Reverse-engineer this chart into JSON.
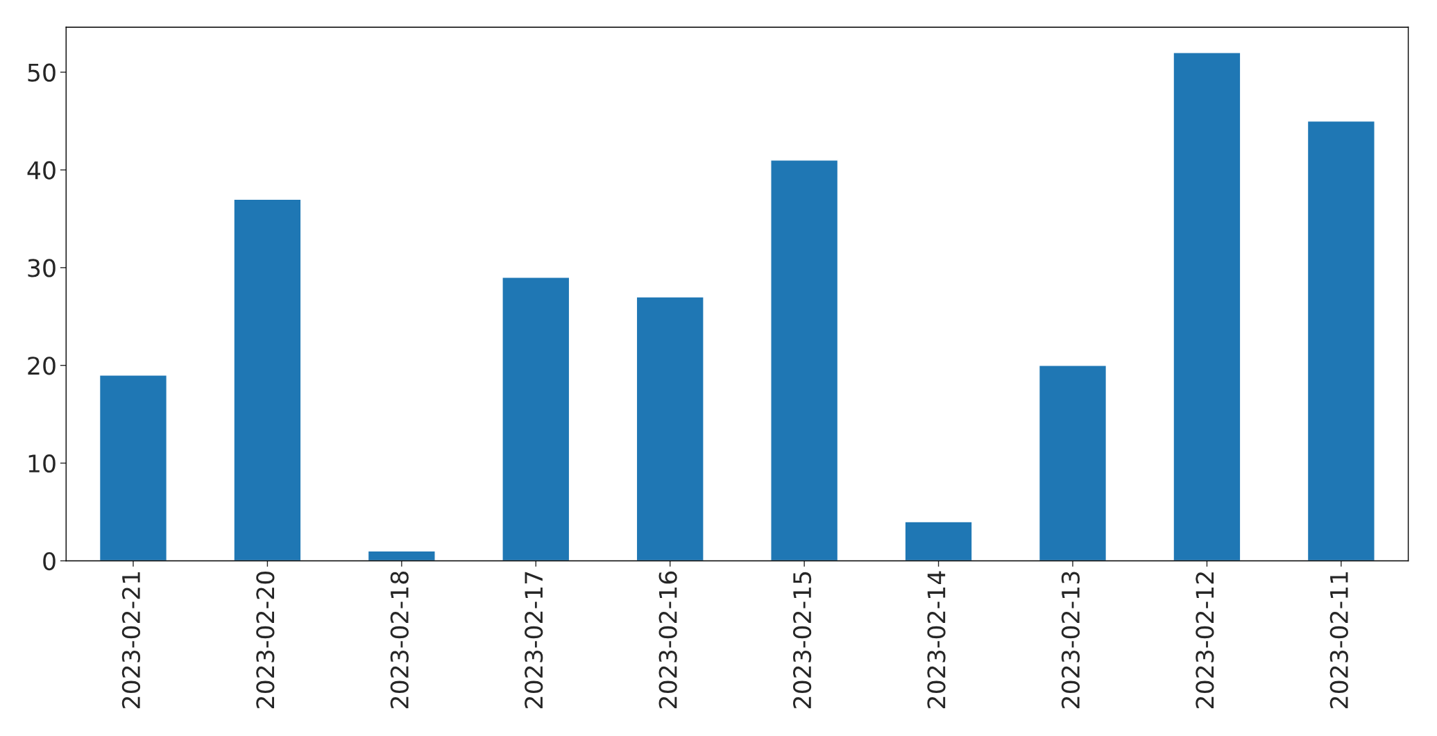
{
  "chart_data": {
    "type": "bar",
    "categories": [
      "2023-02-21",
      "2023-02-20",
      "2023-02-18",
      "2023-02-17",
      "2023-02-16",
      "2023-02-15",
      "2023-02-14",
      "2023-02-13",
      "2023-02-12",
      "2023-02-11"
    ],
    "values": [
      19,
      37,
      1,
      29,
      27,
      41,
      4,
      20,
      52,
      45
    ],
    "color": "#1f77b4",
    "ylim": [
      0,
      54.6
    ],
    "yticks": [
      0,
      10,
      20,
      30,
      40,
      50
    ],
    "grid": false,
    "legend": false
  }
}
